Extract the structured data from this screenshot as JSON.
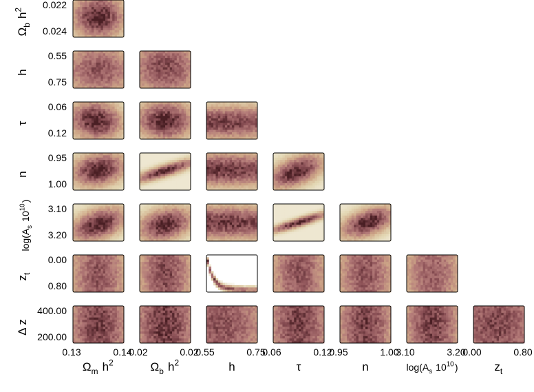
{
  "chart_data": {
    "type": "heatmap",
    "layout": "triangle-corner-plot",
    "parameters": [
      {
        "key": "omch2",
        "label": "Ω_m h^2",
        "ticks": [
          "0.13",
          "0.14"
        ],
        "range": [
          0.128,
          0.146
        ]
      },
      {
        "key": "ombh2",
        "label": "Ω_b h^2",
        "ticks": [
          "0.022",
          "0.024"
        ],
        "range": [
          0.0215,
          0.0245
        ]
      },
      {
        "key": "h",
        "label": "h",
        "ticks": [
          "0.55",
          "0.75"
        ],
        "range": [
          0.5,
          0.8
        ]
      },
      {
        "key": "tau",
        "label": "τ",
        "ticks": [
          "0.06",
          "0.12"
        ],
        "range": [
          0.05,
          0.13
        ]
      },
      {
        "key": "n",
        "label": "n",
        "ticks": [
          "0.95",
          "1.00"
        ],
        "range": [
          0.93,
          1.01
        ]
      },
      {
        "key": "logAs",
        "label": "log(A_s 10^10)",
        "ticks": [
          "3.10",
          "3.20"
        ],
        "range": [
          3.05,
          3.22
        ]
      },
      {
        "key": "zt",
        "label": "z_t",
        "ticks": [
          "0.00",
          "0.80"
        ],
        "range": [
          0.0,
          0.85
        ]
      },
      {
        "key": "dz",
        "label": "Δ z",
        "ticks": [
          "400.00",
          "200.00"
        ],
        "range": [
          100,
          500
        ]
      }
    ],
    "x_tick_labels": [
      [
        "0.13",
        "0.14"
      ],
      [
        "0.02",
        "0.02"
      ],
      [
        "0.55",
        "0.75"
      ],
      [
        "0.06",
        "0.12"
      ],
      [
        "0.95",
        "1.00"
      ],
      [
        "3.10",
        "3.20"
      ],
      [
        "0.00",
        "0.80"
      ]
    ],
    "panels": [
      {
        "row": 0,
        "col": 0,
        "shape": "blob",
        "cx": 0.5,
        "cy": 0.55,
        "sx": 0.35,
        "sy": 0.4,
        "rho": 0.0,
        "peak": 1.0
      },
      {
        "row": 1,
        "col": 0,
        "shape": "blob",
        "cx": 0.5,
        "cy": 0.5,
        "sx": 0.5,
        "sy": 0.5,
        "rho": 0.0,
        "peak": 0.75
      },
      {
        "row": 1,
        "col": 1,
        "shape": "blob",
        "cx": 0.5,
        "cy": 0.55,
        "sx": 0.5,
        "sy": 0.55,
        "rho": 0.0,
        "peak": 0.8
      },
      {
        "row": 2,
        "col": 0,
        "shape": "blob",
        "cx": 0.45,
        "cy": 0.5,
        "sx": 0.35,
        "sy": 0.35,
        "rho": -0.1,
        "peak": 1.0
      },
      {
        "row": 2,
        "col": 1,
        "shape": "blob",
        "cx": 0.5,
        "cy": 0.5,
        "sx": 0.38,
        "sy": 0.35,
        "rho": 0.0,
        "peak": 1.0
      },
      {
        "row": 2,
        "col": 2,
        "shape": "band",
        "cx": 0.3,
        "cy": 0.45,
        "sx": 0.7,
        "sy": 0.3,
        "rho": 0.0,
        "peak": 0.85
      },
      {
        "row": 3,
        "col": 0,
        "shape": "blob",
        "cx": 0.5,
        "cy": 0.55,
        "sx": 0.35,
        "sy": 0.3,
        "rho": 0.2,
        "peak": 1.0
      },
      {
        "row": 3,
        "col": 1,
        "shape": "blob",
        "cx": 0.5,
        "cy": 0.52,
        "sx": 0.4,
        "sy": 0.2,
        "rho": 0.85,
        "peak": 1.0
      },
      {
        "row": 3,
        "col": 2,
        "shape": "band",
        "cx": 0.3,
        "cy": 0.55,
        "sx": 0.7,
        "sy": 0.3,
        "rho": -0.1,
        "peak": 0.9
      },
      {
        "row": 3,
        "col": 3,
        "shape": "blob",
        "cx": 0.45,
        "cy": 0.5,
        "sx": 0.35,
        "sy": 0.3,
        "rho": 0.5,
        "peak": 1.0
      },
      {
        "row": 4,
        "col": 0,
        "shape": "blob",
        "cx": 0.5,
        "cy": 0.45,
        "sx": 0.35,
        "sy": 0.3,
        "rho": 0.4,
        "peak": 1.0
      },
      {
        "row": 4,
        "col": 1,
        "shape": "blob",
        "cx": 0.5,
        "cy": 0.45,
        "sx": 0.35,
        "sy": 0.3,
        "rho": 0.3,
        "peak": 1.0
      },
      {
        "row": 4,
        "col": 2,
        "shape": "band",
        "cx": 0.3,
        "cy": 0.5,
        "sx": 0.7,
        "sy": 0.3,
        "rho": 0.0,
        "peak": 0.9
      },
      {
        "row": 4,
        "col": 3,
        "shape": "blob",
        "cx": 0.5,
        "cy": 0.5,
        "sx": 0.38,
        "sy": 0.18,
        "rho": 0.9,
        "peak": 1.0
      },
      {
        "row": 4,
        "col": 4,
        "shape": "blob",
        "cx": 0.55,
        "cy": 0.5,
        "sx": 0.35,
        "sy": 0.28,
        "rho": 0.5,
        "peak": 1.0
      },
      {
        "row": 5,
        "col": 0,
        "shape": "column",
        "cx": 0.5,
        "cy": 0.45,
        "sx": 0.4,
        "sy": 0.6,
        "rho": 0.0,
        "peak": 0.75
      },
      {
        "row": 5,
        "col": 1,
        "shape": "column",
        "cx": 0.5,
        "cy": 0.5,
        "sx": 0.38,
        "sy": 0.6,
        "rho": 0.0,
        "peak": 0.8
      },
      {
        "row": 5,
        "col": 2,
        "shape": "arc",
        "cx": 0.0,
        "cy": 0.0,
        "sx": 0.0,
        "sy": 0.0,
        "rho": 0.0,
        "peak": 1.0
      },
      {
        "row": 5,
        "col": 3,
        "shape": "column",
        "cx": 0.5,
        "cy": 0.5,
        "sx": 0.4,
        "sy": 0.6,
        "rho": 0.0,
        "peak": 0.75
      },
      {
        "row": 5,
        "col": 4,
        "shape": "column",
        "cx": 0.5,
        "cy": 0.5,
        "sx": 0.4,
        "sy": 0.6,
        "rho": 0.0,
        "peak": 0.75
      },
      {
        "row": 5,
        "col": 5,
        "shape": "column",
        "cx": 0.5,
        "cy": 0.5,
        "sx": 0.4,
        "sy": 0.6,
        "rho": 0.0,
        "peak": 0.7
      },
      {
        "row": 6,
        "col": 0,
        "shape": "column",
        "cx": 0.5,
        "cy": 0.5,
        "sx": 0.45,
        "sy": 0.7,
        "rho": 0.0,
        "peak": 0.85
      },
      {
        "row": 6,
        "col": 1,
        "shape": "column",
        "cx": 0.5,
        "cy": 0.5,
        "sx": 0.45,
        "sy": 0.7,
        "rho": 0.0,
        "peak": 0.9
      },
      {
        "row": 6,
        "col": 2,
        "shape": "column",
        "cx": 0.3,
        "cy": 0.5,
        "sx": 0.7,
        "sy": 0.7,
        "rho": 0.0,
        "peak": 0.75
      },
      {
        "row": 6,
        "col": 3,
        "shape": "column",
        "cx": 0.5,
        "cy": 0.5,
        "sx": 0.45,
        "sy": 0.7,
        "rho": 0.0,
        "peak": 0.85
      },
      {
        "row": 6,
        "col": 4,
        "shape": "column",
        "cx": 0.5,
        "cy": 0.5,
        "sx": 0.4,
        "sy": 0.7,
        "rho": 0.0,
        "peak": 0.85
      },
      {
        "row": 6,
        "col": 5,
        "shape": "column",
        "cx": 0.5,
        "cy": 0.5,
        "sx": 0.4,
        "sy": 0.7,
        "rho": 0.0,
        "peak": 0.85
      },
      {
        "row": 6,
        "col": 6,
        "shape": "column",
        "cx": 0.45,
        "cy": 0.5,
        "sx": 0.7,
        "sy": 0.7,
        "rho": 0.0,
        "peak": 0.8
      }
    ],
    "colormap": [
      "#ffffff",
      "#e3d7b3",
      "#cfa888",
      "#b37a78",
      "#8a4f55",
      "#4a1f24"
    ],
    "grid": false,
    "legend": "none"
  }
}
